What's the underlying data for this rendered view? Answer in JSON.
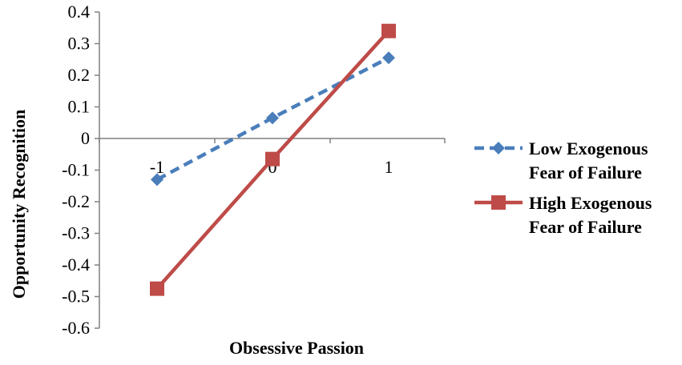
{
  "chart_data": {
    "type": "line",
    "title": "",
    "xlabel": "Obsessive Passion",
    "ylabel": "Opportunity Recognition",
    "x": [
      -1,
      0,
      1
    ],
    "x_tick_labels": [
      "-1",
      "0",
      "1"
    ],
    "ylim": [
      -0.6,
      0.4
    ],
    "y_ticks": [
      0.4,
      0.3,
      0.2,
      0.1,
      0,
      -0.1,
      -0.2,
      -0.3,
      -0.4,
      -0.5,
      -0.6
    ],
    "y_tick_labels": [
      "0.4",
      "0.3",
      "0.2",
      "0.1",
      "0",
      "-0.1",
      "-0.2",
      "-0.3",
      "-0.4",
      "-0.5",
      "-0.6"
    ],
    "grid": false,
    "legend_position": "right",
    "series": [
      {
        "name_lines": [
          "Low Exogenous",
          "Fear of Failure"
        ],
        "values": [
          -0.13,
          0.065,
          0.255
        ],
        "color": "#4a7ebb",
        "line_style": "dashed",
        "marker": "diamond"
      },
      {
        "name_lines": [
          "High Exogenous",
          "Fear of Failure"
        ],
        "values": [
          -0.475,
          -0.065,
          0.34
        ],
        "color": "#be4b48",
        "line_style": "solid",
        "marker": "square"
      }
    ]
  }
}
